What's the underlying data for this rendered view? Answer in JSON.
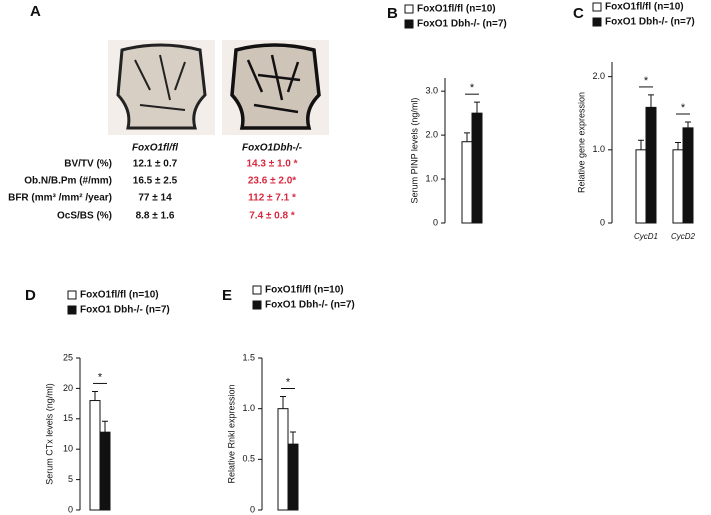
{
  "table": {
    "panel": "A",
    "columns": [
      "FoxO1fl/fl",
      "FoxO1Dbh-/-"
    ],
    "rows": [
      [
        "BV/TV (%)",
        "12.1 ± 0.7",
        "14.3 ± 1.0 *"
      ],
      [
        "Ob.N/B.Pm (#/mm)",
        "16.5 ± 2.5",
        "23.6 ± 2.0*"
      ],
      [
        "BFR (mm³ /mm² /year)",
        "77 ± 14",
        "112 ± 7.1 *"
      ],
      [
        "OcS/BS (%)",
        "8.8 ± 1.6",
        "7.4 ± 0.8 *"
      ]
    ]
  },
  "chart_data": [
    {
      "type": "bar",
      "panel": "B",
      "ylabel": "Serum PINP levels (ng/ml)",
      "categories": [
        null
      ],
      "series": [
        {
          "name": "FoxO1fl/fl (n=10)",
          "color": "#ffffff",
          "values": [
            1.85
          ],
          "errors": [
            0.2
          ]
        },
        {
          "name": "FoxO1 Dbh-/- (n=7)",
          "color": "#111111",
          "values": [
            2.5
          ],
          "errors": [
            0.25
          ]
        }
      ],
      "annotations": [
        "*"
      ],
      "ylim": [
        0,
        3.3
      ],
      "yticks": [
        0,
        {
          "value": 1,
          "label": "1.0"
        },
        {
          "value": 2,
          "label": "2.0"
        },
        {
          "value": 3,
          "label": "3.0"
        }
      ],
      "grid": false
    },
    {
      "type": "bar",
      "panel": "C",
      "ylabel": "Relative gene expression",
      "categories": [
        "CycD1",
        "CycD2"
      ],
      "series": [
        {
          "name": "FoxO1fl/fl (n=10)",
          "color": "#ffffff",
          "values": [
            1.0,
            1.0
          ],
          "errors": [
            0.13,
            0.1
          ]
        },
        {
          "name": "FoxO1 Dbh-/- (n=7)",
          "color": "#111111",
          "values": [
            1.58,
            1.3
          ],
          "errors": [
            0.17,
            0.08
          ]
        }
      ],
      "annotations": [
        "*",
        "*"
      ],
      "ylim": [
        0,
        2.2
      ],
      "yticks": [
        0,
        {
          "value": 1,
          "label": "1.0"
        },
        {
          "value": 2,
          "label": "2.0"
        }
      ],
      "grid": false
    },
    {
      "type": "bar",
      "panel": "D",
      "ylabel": "Serum CTx levels (ng/ml)",
      "categories": [
        null
      ],
      "series": [
        {
          "name": "FoxO1fl/fl (n=10)",
          "color": "#ffffff",
          "values": [
            18
          ],
          "errors": [
            1.5
          ]
        },
        {
          "name": "FoxO1 Dbh-/- (n=7)",
          "color": "#111111",
          "values": [
            12.8
          ],
          "errors": [
            1.8
          ]
        }
      ],
      "annotations": [
        "*"
      ],
      "ylim": [
        0,
        25
      ],
      "yticks": [
        0,
        5,
        10,
        15,
        20,
        25
      ],
      "grid": false
    },
    {
      "type": "bar",
      "panel": "E",
      "ylabel": "Relative Rnkl expression",
      "categories": [
        null
      ],
      "series": [
        {
          "name": "FoxO1fl/fl (n=10)",
          "color": "#ffffff",
          "values": [
            1.0
          ],
          "errors": [
            0.12
          ]
        },
        {
          "name": "FoxO1 Dbh-/- (n=7)",
          "color": "#111111",
          "values": [
            0.65
          ],
          "errors": [
            0.12
          ]
        }
      ],
      "annotations": [
        "*"
      ],
      "ylim": [
        0,
        1.5
      ],
      "yticks": [
        0,
        0.5,
        {
          "value": 1,
          "label": "1.0"
        },
        1.5
      ],
      "grid": false
    }
  ]
}
